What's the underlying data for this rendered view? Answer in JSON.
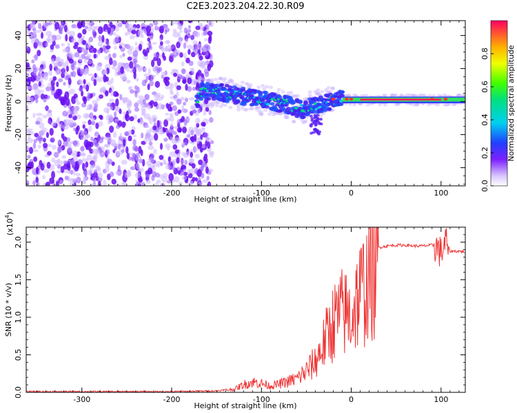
{
  "title": "C2E3.2023.204.22.30.R09",
  "chart_data": [
    {
      "type": "heatmap",
      "xlabel": "Height of straight line (km)",
      "ylabel": "Frequency (Hz)",
      "xlim": [
        -362,
        127
      ],
      "ylim": [
        -51,
        49
      ],
      "xticks": [
        -300,
        -200,
        -100,
        0,
        100
      ],
      "xtick_labels": [
        "-300",
        "-200",
        "-100",
        "0",
        "100"
      ],
      "yticks": [
        -40,
        -20,
        0,
        20,
        40
      ],
      "ytick_labels": [
        "-40",
        "-20",
        "0",
        "20",
        "40"
      ],
      "noise_region_x": [
        -362,
        -155
      ],
      "signal_track": [
        {
          "x": -170,
          "y": 6
        },
        {
          "x": -150,
          "y": 6
        },
        {
          "x": -130,
          "y": 4
        },
        {
          "x": -110,
          "y": 2
        },
        {
          "x": -90,
          "y": 0
        },
        {
          "x": -70,
          "y": -2
        },
        {
          "x": -55,
          "y": -5
        },
        {
          "x": -40,
          "y": -2
        },
        {
          "x": -25,
          "y": 0
        },
        {
          "x": -10,
          "y": 2
        },
        {
          "x": 0,
          "y": 1
        },
        {
          "x": 20,
          "y": 1
        },
        {
          "x": 60,
          "y": 1
        },
        {
          "x": 100,
          "y": 1
        },
        {
          "x": 127,
          "y": 1
        }
      ],
      "colorbar": {
        "label": "Normalized spectral amplitude",
        "range": [
          0,
          1
        ],
        "ticks": [
          0.0,
          0.2,
          0.4,
          0.6,
          0.8
        ],
        "tick_labels": [
          "0.0",
          "0.2",
          "0.4",
          "0.6",
          "0.8"
        ]
      }
    },
    {
      "type": "line",
      "xlabel": "Height of straight line (km)",
      "ylabel": "SNR (10 * v/v)",
      "y_multiplier": "(x10",
      "y_multiplier_exp": "4",
      "y_multiplier_close": ")",
      "xlim": [
        -362,
        127
      ],
      "ylim": [
        0,
        2.2
      ],
      "xticks": [
        -300,
        -200,
        -100,
        0,
        100
      ],
      "xtick_labels": [
        "-300",
        "-200",
        "-100",
        "0",
        "100"
      ],
      "yticks": [
        0.0,
        0.5,
        1.0,
        1.5,
        2.0
      ],
      "ytick_labels": [
        "0.0",
        "0.5",
        "1.0",
        "1.5",
        "2.0"
      ],
      "color": "#ee3333",
      "series": [
        {
          "x": [
            -362,
            -300,
            -200,
            -150,
            -130,
            -120,
            -110,
            -100,
            -90,
            -80,
            -70,
            -60,
            -50,
            -40,
            -30,
            -20,
            -10,
            0,
            5,
            10,
            15,
            20,
            25,
            30,
            40,
            50,
            60,
            70,
            80,
            90,
            95,
            100,
            105,
            110,
            120,
            127
          ],
          "values": [
            0.01,
            0.01,
            0.01,
            0.02,
            0.05,
            0.12,
            0.16,
            0.14,
            0.1,
            0.13,
            0.17,
            0.22,
            0.33,
            0.48,
            0.78,
            1.1,
            1.25,
            1.2,
            1.4,
            1.55,
            1.65,
            1.8,
            1.88,
            1.93,
            1.95,
            1.96,
            1.96,
            1.95,
            1.95,
            1.96,
            1.94,
            1.85,
            2.02,
            1.88,
            1.88,
            1.87
          ]
        }
      ]
    }
  ]
}
